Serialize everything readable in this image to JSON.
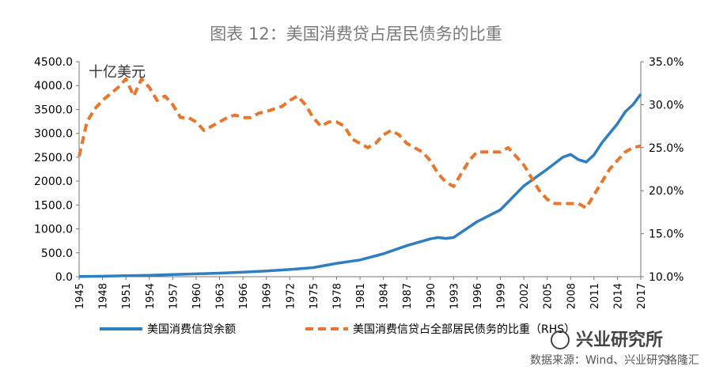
{
  "chart_data": {
    "type": "line",
    "title": "图表 12：美国消费贷占居民债务的比重",
    "unit_label": "十亿美元",
    "x_tick_labels": [
      "1945",
      "1948",
      "1951",
      "1954",
      "1957",
      "1960",
      "1963",
      "1966",
      "1969",
      "1972",
      "1975",
      "1978",
      "1981",
      "1984",
      "1987",
      "1990",
      "1993",
      "1996",
      "1999",
      "2002",
      "2005",
      "2008",
      "2011",
      "2014",
      "2017"
    ],
    "xlim": [
      1945,
      2017
    ],
    "left_axis": {
      "min": 0,
      "max": 4500,
      "ticks": [
        0,
        500,
        1000,
        1500,
        2000,
        2500,
        3000,
        3500,
        4000,
        4500
      ],
      "labels": [
        "0.0",
        "500.0",
        "1000.0",
        "1500.0",
        "2000.0",
        "2500.0",
        "3000.0",
        "3500.0",
        "4000.0",
        "4500.0"
      ]
    },
    "right_axis": {
      "min": 10,
      "max": 35,
      "ticks": [
        10,
        15,
        20,
        25,
        30,
        35
      ],
      "labels": [
        "10.0%",
        "15.0%",
        "20.0%",
        "25.0%",
        "30.0%",
        "35.0%"
      ]
    },
    "series": [
      {
        "name": "美国消费信贷余额",
        "axis": "left",
        "style": "solid",
        "color": "#2f7ec1",
        "x": [
          1945,
          1948,
          1951,
          1954,
          1957,
          1960,
          1963,
          1966,
          1969,
          1972,
          1975,
          1978,
          1981,
          1984,
          1987,
          1990,
          1991,
          1992,
          1993,
          1996,
          1999,
          2002,
          2005,
          2007,
          2008,
          2009,
          2010,
          2011,
          2012,
          2014,
          2015,
          2016,
          2017
        ],
        "y": [
          5,
          10,
          20,
          30,
          45,
          60,
          75,
          95,
          120,
          150,
          190,
          280,
          350,
          480,
          650,
          790,
          820,
          800,
          820,
          1150,
          1400,
          1900,
          2250,
          2500,
          2560,
          2450,
          2400,
          2550,
          2800,
          3200,
          3450,
          3600,
          3820
        ]
      },
      {
        "name": "美国消费信贷占全部居民债务的比重（RHS）",
        "axis": "right",
        "style": "dashed",
        "color": "#e8762d",
        "x": [
          1945,
          1946,
          1947,
          1948,
          1950,
          1951,
          1952,
          1953,
          1954,
          1955,
          1956,
          1957,
          1958,
          1959,
          1960,
          1961,
          1962,
          1963,
          1964,
          1965,
          1966,
          1967,
          1968,
          1969,
          1970,
          1971,
          1972,
          1973,
          1974,
          1975,
          1976,
          1977,
          1978,
          1979,
          1980,
          1981,
          1982,
          1983,
          1984,
          1985,
          1986,
          1987,
          1988,
          1989,
          1990,
          1991,
          1992,
          1993,
          1994,
          1995,
          1996,
          1997,
          1998,
          1999,
          2000,
          2001,
          2002,
          2003,
          2004,
          2005,
          2006,
          2007,
          2008,
          2009,
          2010,
          2011,
          2012,
          2013,
          2014,
          2015,
          2016,
          2017
        ],
        "y": [
          24.0,
          28.0,
          29.5,
          30.5,
          32.0,
          33.0,
          31.0,
          33.0,
          32.0,
          30.5,
          31.0,
          30.0,
          28.5,
          28.5,
          28.0,
          27.0,
          27.5,
          28.0,
          28.5,
          28.8,
          28.5,
          28.5,
          29.0,
          29.2,
          29.5,
          29.8,
          30.5,
          31.0,
          30.0,
          28.5,
          27.5,
          28.0,
          28.0,
          27.5,
          26.0,
          25.5,
          25.0,
          25.5,
          26.5,
          27.0,
          26.5,
          25.5,
          25.0,
          24.5,
          23.5,
          22.0,
          21.0,
          20.5,
          22.0,
          23.5,
          24.5,
          24.5,
          24.5,
          24.5,
          25.0,
          24.0,
          23.0,
          21.5,
          20.0,
          19.0,
          18.5,
          18.5,
          18.5,
          18.5,
          18.0,
          19.5,
          21.0,
          22.5,
          23.5,
          24.5,
          25.0,
          25.2
        ]
      }
    ],
    "legend_position": "bottom",
    "source_text": "数据来源：Wind、兴业研究",
    "watermark": "格隆汇",
    "watermark_main": "兴业研究所"
  }
}
